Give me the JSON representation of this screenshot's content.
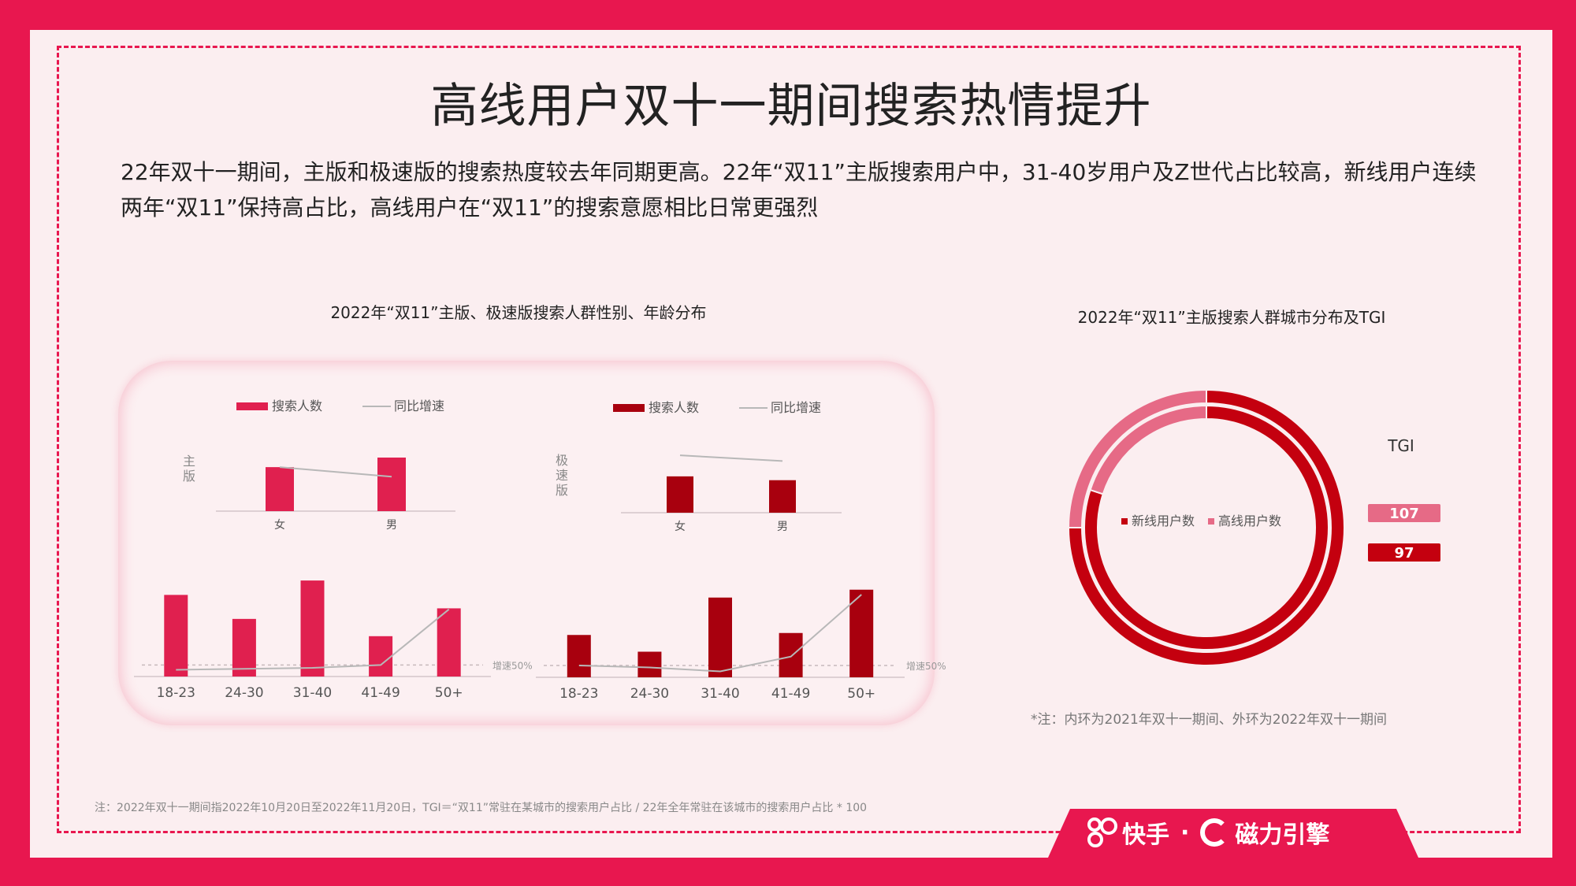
{
  "title": "高线用户双十一期间搜索热情提升",
  "summary": "22年双十一期间，主版和极速版的搜索热度较去年同期更高。22年“双11”主版搜索用户中，31-40岁用户及Z世代占比较高，新线用户连续两年“双11”保持高占比，高线用户在“双11”的搜索意愿相比日常更强烈",
  "left_chart_title": "2022年“双11”主版、极速版搜索人群性别、年龄分布",
  "right_chart_title": "2022年“双11”主版搜索人群城市分布及TGI",
  "right_note": "*注：内环为2021年双十一期间、外环为2022年双十一期间",
  "footnote": "注：2022年双十一期间指2022年10月20日至2022年11月20日，TGI＝“双11”常驻在某城市的搜索用户占比 / 22年全年常驻在该城市的搜索用户占比 * 100",
  "brand": {
    "kuaishou": "快手",
    "separator": "·",
    "cili": "磁力引擎"
  },
  "colors": {
    "main_bar": "#e0204f",
    "lite_bar": "#a8000e",
    "new_tier": "#c4000f",
    "high_tier": "#e66a86",
    "growth_line": "#b8b8b8"
  },
  "chart_data": [
    {
      "id": "main-gender",
      "type": "bar",
      "side_label": "主版",
      "legend": [
        "搜索人数",
        "同比增速"
      ],
      "categories": [
        "女",
        "男"
      ],
      "series": [
        {
          "name": "搜索人数",
          "values": [
            46,
            56
          ]
        },
        {
          "name": "同比增速",
          "values": [
            46,
            36
          ]
        }
      ],
      "ylim": [
        0,
        70
      ]
    },
    {
      "id": "lite-gender",
      "type": "bar",
      "side_label": "极速版",
      "legend": [
        "搜索人数",
        "同比增速"
      ],
      "categories": [
        "女",
        "男"
      ],
      "series": [
        {
          "name": "搜索人数",
          "values": [
            38,
            34
          ]
        },
        {
          "name": "同比增速",
          "values": [
            60,
            54
          ]
        }
      ],
      "ylim": [
        0,
        70
      ]
    },
    {
      "id": "main-age",
      "type": "bar",
      "categories": [
        "18-23",
        "24-30",
        "31-40",
        "41-49",
        "50+"
      ],
      "series": [
        {
          "name": "搜索人数",
          "values": [
            85,
            60,
            100,
            42,
            71
          ]
        },
        {
          "name": "同比增速",
          "values": [
            7,
            8,
            9,
            12,
            70
          ]
        }
      ],
      "reference_line": {
        "label": "增速50%",
        "value": 12
      },
      "ylim": [
        0,
        105
      ]
    },
    {
      "id": "lite-age",
      "type": "bar",
      "categories": [
        "18-23",
        "24-30",
        "31-40",
        "41-49",
        "50+"
      ],
      "series": [
        {
          "name": "搜索人数",
          "values": [
            43,
            26,
            81,
            45,
            89
          ]
        },
        {
          "name": "同比增速",
          "values": [
            12,
            10,
            6,
            21,
            84
          ]
        }
      ],
      "reference_line": {
        "label": "增速50%",
        "value": 12
      },
      "ylim": [
        0,
        100
      ]
    },
    {
      "id": "city-donut",
      "type": "pie",
      "legend": [
        "新线用户数",
        "高线用户数"
      ],
      "tgi_label": "TGI",
      "series": [
        {
          "ring": "inner",
          "values": [
            {
              "label": "新线用户数",
              "value": 80
            },
            {
              "label": "高线用户数",
              "value": 20
            }
          ]
        },
        {
          "ring": "outer",
          "values": [
            {
              "label": "新线用户数",
              "value": 75
            },
            {
              "label": "高线用户数",
              "value": 25
            }
          ]
        }
      ],
      "tgi": [
        {
          "label": "高线用户数",
          "value": 107
        },
        {
          "label": "新线用户数",
          "value": 97
        }
      ]
    }
  ]
}
